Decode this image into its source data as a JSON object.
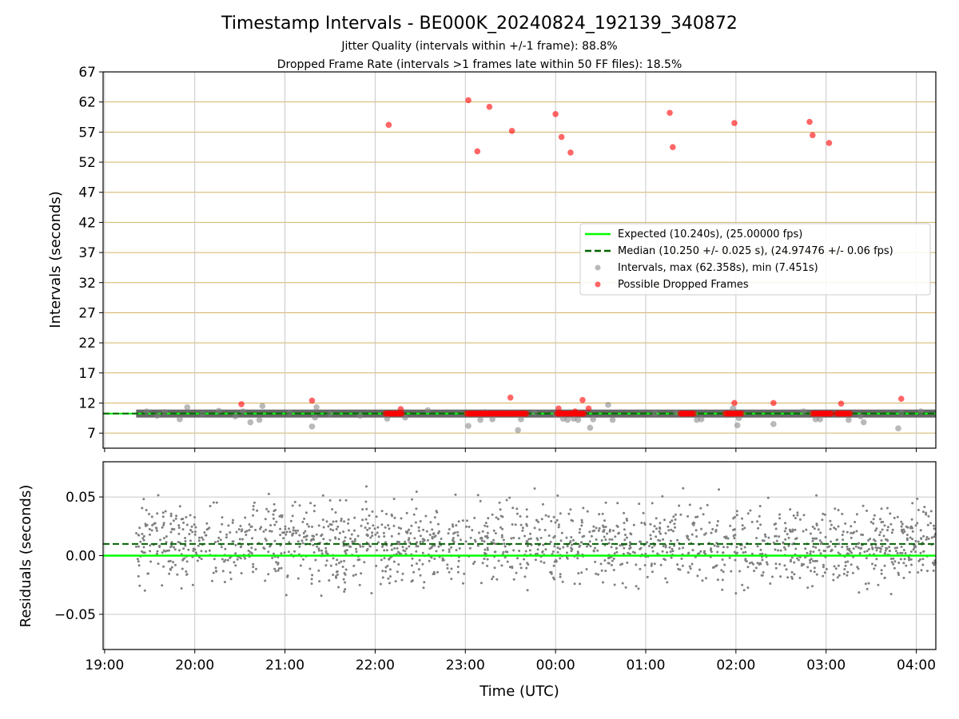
{
  "chart_data": [
    {
      "type": "scatter",
      "title": "Timestamp Intervals - BE000K_20240824_192139_340872",
      "subtitle_lines": [
        "Jitter Quality (intervals within +/-1 frame): 88.8%",
        "Dropped Frame Rate (intervals >1 frames late within 50 FF files): 18.5%"
      ],
      "xlabel": "",
      "ylabel": "Intervals (seconds)",
      "x_axis_unit": "time (UTC), minutes from 19:00",
      "xlim": [
        -1,
        553
      ],
      "ylim": [
        4.5,
        67
      ],
      "yticks": [
        7,
        12,
        17,
        22,
        27,
        32,
        37,
        42,
        47,
        52,
        57,
        62,
        67
      ],
      "grid": true,
      "colors": {
        "expected": "#00ff00",
        "median": "#006400",
        "interval_points": "#808080",
        "dropped_points": "#ff0000",
        "hgrid": "#d2b464",
        "band": "#404040"
      },
      "legend": {
        "placement": "center-right",
        "entries": [
          "Expected (10.240s), (25.00000 fps)",
          "Median (10.250 +/- 0.025 s), (24.97476 +/- 0.06 fps)",
          "Intervals, max (62.358s), min (7.451s)",
          "Possible Dropped Frames"
        ]
      },
      "expected_interval": 10.24,
      "median_interval": 10.25,
      "dense_band": {
        "x_range": [
          21,
          553
        ],
        "y_center": 10.25
      },
      "interval_outliers": [
        {
          "x": 28,
          "y": 10.6
        },
        {
          "x": 35,
          "y": 9.9
        },
        {
          "x": 40,
          "y": 10.5
        },
        {
          "x": 50,
          "y": 9.3
        },
        {
          "x": 55,
          "y": 11.3
        },
        {
          "x": 65,
          "y": 10.2
        },
        {
          "x": 76,
          "y": 10.7
        },
        {
          "x": 87,
          "y": 9.8
        },
        {
          "x": 92,
          "y": 10.6
        },
        {
          "x": 97,
          "y": 8.8
        },
        {
          "x": 103,
          "y": 9.2
        },
        {
          "x": 105,
          "y": 11.5
        },
        {
          "x": 123,
          "y": 10.4
        },
        {
          "x": 138,
          "y": 8.1
        },
        {
          "x": 140,
          "y": 9.6
        },
        {
          "x": 141,
          "y": 11.3
        },
        {
          "x": 150,
          "y": 10.2
        },
        {
          "x": 170,
          "y": 9.9
        },
        {
          "x": 188,
          "y": 9.4
        },
        {
          "x": 200,
          "y": 9.6
        },
        {
          "x": 215,
          "y": 10.8
        },
        {
          "x": 242,
          "y": 8.2
        },
        {
          "x": 250,
          "y": 9.2
        },
        {
          "x": 253,
          "y": 10.5
        },
        {
          "x": 258,
          "y": 9.3
        },
        {
          "x": 275,
          "y": 7.5
        },
        {
          "x": 277,
          "y": 9.3
        },
        {
          "x": 286,
          "y": 10.4
        },
        {
          "x": 300,
          "y": 10.1
        },
        {
          "x": 305,
          "y": 9.4
        },
        {
          "x": 308,
          "y": 9.2
        },
        {
          "x": 312,
          "y": 9.4
        },
        {
          "x": 315,
          "y": 9.2
        },
        {
          "x": 323,
          "y": 7.9
        },
        {
          "x": 325,
          "y": 9.3
        },
        {
          "x": 335,
          "y": 11.7
        },
        {
          "x": 338,
          "y": 9.2
        },
        {
          "x": 366,
          "y": 10.3
        },
        {
          "x": 380,
          "y": 10.4
        },
        {
          "x": 394,
          "y": 9.2
        },
        {
          "x": 397,
          "y": 9.3
        },
        {
          "x": 418,
          "y": 11.1
        },
        {
          "x": 419,
          "y": 10.1
        },
        {
          "x": 421,
          "y": 8.3
        },
        {
          "x": 422,
          "y": 9.5
        },
        {
          "x": 445,
          "y": 8.5
        },
        {
          "x": 465,
          "y": 10.6
        },
        {
          "x": 473,
          "y": 9.3
        },
        {
          "x": 476,
          "y": 9.3
        },
        {
          "x": 495,
          "y": 9.2
        },
        {
          "x": 503,
          "y": 9.8
        },
        {
          "x": 505,
          "y": 8.8
        },
        {
          "x": 528,
          "y": 7.8
        },
        {
          "x": 530,
          "y": 10.4
        },
        {
          "x": 543,
          "y": 10.6
        }
      ],
      "dropped_frames": [
        {
          "x": 91,
          "y": 11.8
        },
        {
          "x": 138,
          "y": 12.4
        },
        {
          "x": 189,
          "y": 58.2
        },
        {
          "x": 197,
          "y": 11.0
        },
        {
          "x": 242,
          "y": 62.3
        },
        {
          "x": 248,
          "y": 53.8
        },
        {
          "x": 256,
          "y": 61.2
        },
        {
          "x": 271,
          "y": 57.2
        },
        {
          "x": 270,
          "y": 12.9
        },
        {
          "x": 300,
          "y": 60.0
        },
        {
          "x": 304,
          "y": 56.2
        },
        {
          "x": 310,
          "y": 53.6
        },
        {
          "x": 302,
          "y": 11.1
        },
        {
          "x": 313,
          "y": 10.6
        },
        {
          "x": 318,
          "y": 12.5
        },
        {
          "x": 322,
          "y": 11.1
        },
        {
          "x": 376,
          "y": 60.2
        },
        {
          "x": 378,
          "y": 54.5
        },
        {
          "x": 419,
          "y": 58.5
        },
        {
          "x": 419,
          "y": 12.0
        },
        {
          "x": 445,
          "y": 12.0
        },
        {
          "x": 469,
          "y": 58.7
        },
        {
          "x": 471,
          "y": 56.5
        },
        {
          "x": 482,
          "y": 55.2
        },
        {
          "x": 490,
          "y": 11.9
        },
        {
          "x": 530,
          "y": 12.7
        }
      ],
      "dropped_frame_clusters": [
        {
          "x_range": [
            187,
            198
          ],
          "y": 10.25
        },
        {
          "x_range": [
            241,
            281
          ],
          "y": 10.25
        },
        {
          "x_range": [
            301,
            319
          ],
          "y": 10.25
        },
        {
          "x_range": [
            383,
            392
          ],
          "y": 10.25
        },
        {
          "x_range": [
            413,
            424
          ],
          "y": 10.25
        },
        {
          "x_range": [
            471,
            484
          ],
          "y": 10.25
        },
        {
          "x_range": [
            487,
            496
          ],
          "y": 10.25
        }
      ]
    },
    {
      "type": "scatter",
      "title": "",
      "xlabel": "Time (UTC)",
      "ylabel": "Residuals (seconds)",
      "xlim": [
        -1,
        553
      ],
      "ylim": [
        -0.08,
        0.08
      ],
      "yticks": [
        -0.05,
        0.0,
        0.05
      ],
      "ytick_labels": [
        "−0.05",
        "0.00",
        "0.05"
      ],
      "xticks": [
        0,
        60,
        120,
        180,
        240,
        300,
        360,
        420,
        480,
        540
      ],
      "xtick_labels": [
        "19:00",
        "20:00",
        "21:00",
        "22:00",
        "23:00",
        "00:00",
        "01:00",
        "02:00",
        "03:00",
        "04:00"
      ],
      "grid": true,
      "expected_residual": 0.0,
      "median_residual": 0.01,
      "residual_points": {
        "x_range": [
          21,
          553
        ],
        "center": 0.01,
        "spread": 0.02,
        "count": 1700
      }
    }
  ]
}
